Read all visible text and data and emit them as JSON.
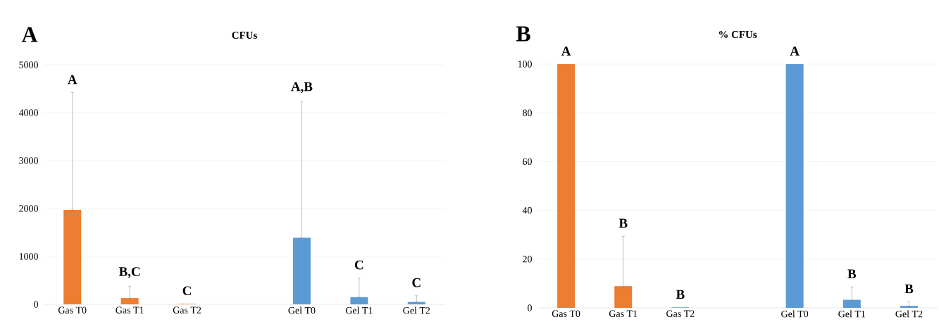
{
  "chart_data": [
    {
      "type": "bar",
      "title": "CFUs",
      "categories": [
        "Gas T0",
        "Gas T1",
        "Gas T2",
        null,
        "Gel T0",
        "Gel T1",
        "Gel T2"
      ],
      "values": [
        1970,
        130,
        10,
        null,
        1390,
        150,
        50
      ],
      "colors": [
        "#ed7d31",
        "#ed7d31",
        "#ed7d31",
        null,
        "#5b9bd5",
        "#5b9bd5",
        "#5b9bd5"
      ],
      "errors": [
        [
          1970,
          4420
        ],
        [
          130,
          370
        ],
        null,
        null,
        [
          1390,
          4230
        ],
        [
          150,
          550
        ],
        [
          50,
          180
        ]
      ],
      "ylim": [
        0,
        5000
      ],
      "yticks": [
        0,
        1000,
        2000,
        3000,
        4000,
        5000
      ],
      "grid": "y",
      "annotations": [
        "A",
        "A",
        "B,C",
        "C",
        "A,B",
        "C",
        "C"
      ]
    },
    {
      "type": "bar",
      "title": "% CFUs",
      "categories": [
        "Gas T0",
        "Gas T1",
        "Gas T2",
        null,
        "Gel T0",
        "Gel T1",
        "Gel T2"
      ],
      "values": [
        100,
        8.9,
        0.2,
        null,
        100,
        3.3,
        0.8
      ],
      "colors": [
        "#ed7d31",
        "#ed7d31",
        "#5b9bd5",
        null,
        "#5b9bd5",
        "#5b9bd5",
        "#5b9bd5"
      ],
      "errors": [
        null,
        [
          8.1,
          29.4
        ],
        null,
        null,
        null,
        [
          2.3,
          8.6
        ],
        [
          0.4,
          2.5
        ]
      ],
      "ylim": [
        0,
        100
      ],
      "yticks": [
        0,
        20,
        40,
        60,
        80,
        100
      ],
      "grid": "y",
      "annotations": [
        "B",
        "A",
        "B",
        "B",
        "A",
        "B",
        "B"
      ]
    }
  ]
}
